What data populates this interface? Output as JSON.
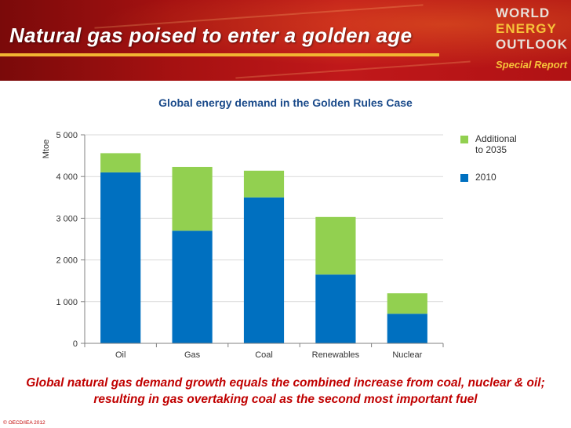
{
  "header": {
    "title": "Natural gas poised to enter a golden age",
    "logo_line1": "WORLD",
    "logo_line2": "ENERGY",
    "logo_line3": "OUTLOOK",
    "logo_line4": "Special Report"
  },
  "chart_data": {
    "type": "bar",
    "stacked": true,
    "title": "Global energy demand in the Golden Rules Case",
    "ylabel": "Mtoe",
    "xlabel": "",
    "ylim": [
      0,
      5000
    ],
    "yticks": [
      0,
      1000,
      2000,
      3000,
      4000,
      5000
    ],
    "ytick_labels": [
      "0",
      "1 000",
      "2 000",
      "3 000",
      "4 000",
      "5 000"
    ],
    "grid": true,
    "categories": [
      "Oil",
      "Gas",
      "Coal",
      "Renewables",
      "Nuclear"
    ],
    "series": [
      {
        "name": "2010",
        "color": "#0070c0",
        "values": [
          4100,
          2700,
          3500,
          1650,
          710
        ]
      },
      {
        "name": "Additional to 2035",
        "color": "#92d050",
        "values": [
          460,
          1530,
          640,
          1380,
          490
        ]
      }
    ],
    "legend": {
      "position": "top-right",
      "items": [
        {
          "label_line1": "Additional",
          "label_line2": "to 2035",
          "color": "#92d050"
        },
        {
          "label_line1": "2010",
          "label_line2": "",
          "color": "#0070c0"
        }
      ]
    }
  },
  "caption": {
    "line1": "Global natural gas demand growth equals the combined increase from coal, nuclear & oil;",
    "line2": "resulting in gas overtaking coal as the second most important fuel"
  },
  "footer": {
    "copyright": "© OECD/IEA 2012"
  }
}
